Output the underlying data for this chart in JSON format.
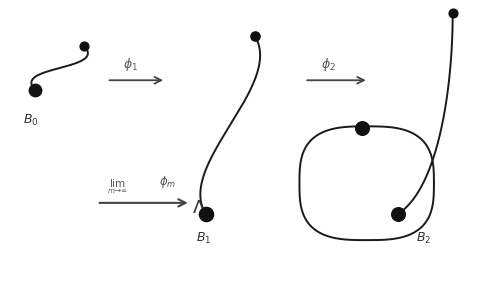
{
  "bg_color": "#ffffff",
  "fig_width": 5.0,
  "fig_height": 2.89,
  "dpi": 100,
  "curve_color": "#1a1a1a",
  "dot_color": "#111111",
  "dot_size_small": 40,
  "dot_size_large": 80,
  "arrow_color": "#444444",
  "text_color": "#555555",
  "label_color": "#333333"
}
